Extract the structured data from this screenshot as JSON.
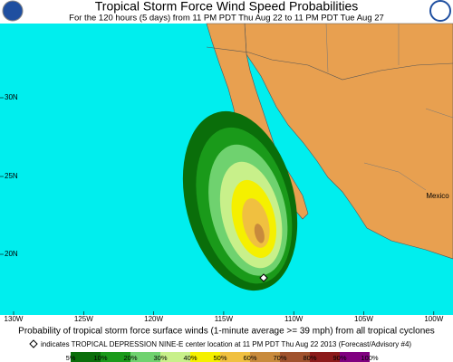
{
  "header": {
    "title": "Tropical Storm Force Wind Speed Probabilities",
    "subtitle": "For the 120 hours (5 days) from 11 PM PDT Thu Aug 22 to 11 PM PDT Tue Aug 27"
  },
  "map": {
    "latitude_labels": [
      "30N",
      "25N",
      "20N"
    ],
    "longitude_labels": [
      "130W",
      "125W",
      "120W",
      "115W",
      "110W",
      "105W",
      "100W"
    ],
    "place_label": "Mexico"
  },
  "footer": {
    "caption": "Probability of tropical storm force surface winds (1-minute average >= 39 mph) from all tropical cyclones",
    "note": "indicates TROPICAL DEPRESSION NINE-E center location at 11 PM PDT Thu Aug 22 2013 (Forecast/Advisory #4)"
  },
  "legend": {
    "labels": [
      "5%",
      "10%",
      "20%",
      "30%",
      "40%",
      "50%",
      "60%",
      "70%",
      "80%",
      "90%",
      "100%"
    ],
    "colors": [
      "#0a6e0a",
      "#1a9a1a",
      "#6fd26f",
      "#c8f08a",
      "#f5f000",
      "#f0c040",
      "#c88a3c",
      "#a0522d",
      "#8b1a1a",
      "#800080"
    ]
  }
}
